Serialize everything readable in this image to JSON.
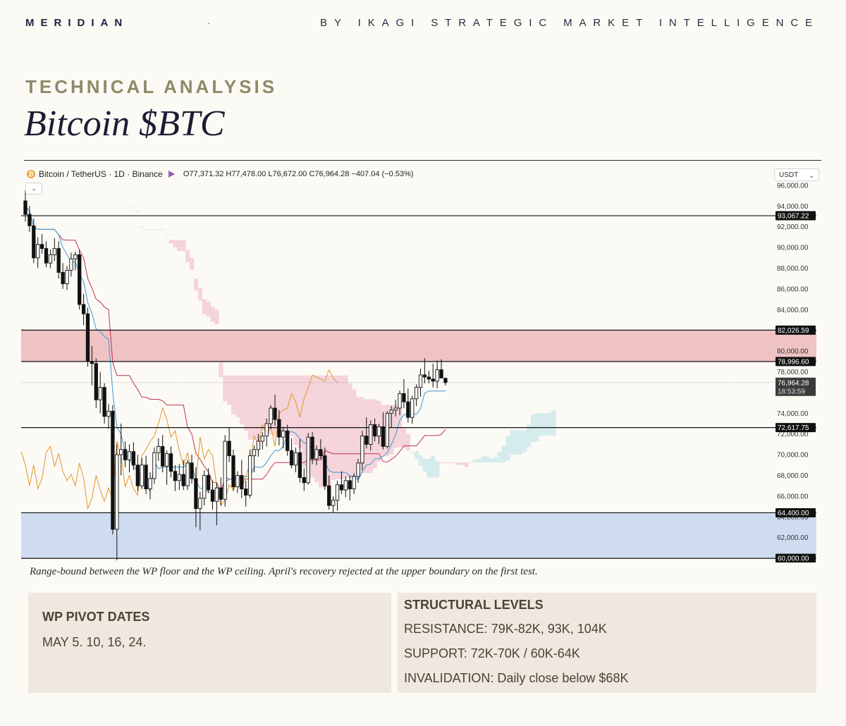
{
  "masthead": {
    "brand": "MERIDIAN",
    "separator": "·",
    "tagline": "BY IKAGI STRATEGIC MARKET INTELLIGENCE"
  },
  "header": {
    "kicker": "TECHNICAL ANALYSIS",
    "title": "Bitcoin $BTC"
  },
  "chart_header": {
    "coin_glyph": "₿",
    "symbol": "Bitcoin / TetherUS · 1D · Binance",
    "ohlc": "O77,371.32 H77,478.00 L76,672.00 C76,964.28 −407.04 (−0.53%)",
    "currency": "USDT",
    "currency_chevron": "⌄",
    "collapse_glyph": "⌄"
  },
  "colors": {
    "resistance_zone": "#efc2c3",
    "support_zone": "#cfdcef",
    "cloud_bearish": "#f3ccd6",
    "cloud_bullish": "#cfe9ea",
    "candle_up": "#ffffff",
    "candle_down": "#111111",
    "tenkan": "#3a9ad6",
    "kijun": "#c0344f",
    "chikou": "#e2962d"
  },
  "chart_data": {
    "type": "candlestick",
    "y_axis": {
      "range": [
        59600,
        96200
      ],
      "ticks": [
        "96,000.00",
        "94,000.00",
        "92,000.00",
        "90,000.00",
        "88,000.00",
        "86,000.00",
        "84,000.00",
        "82,000.00",
        "80,000.00",
        "78,000.00",
        "74,000.00",
        "72,000.00",
        "70,000.00",
        "68,000.00",
        "66,000.00",
        "64,000.00",
        "62,000.00"
      ],
      "tick_values": [
        96000,
        94000,
        92000,
        90000,
        88000,
        86000,
        84000,
        82000,
        80000,
        78000,
        74000,
        72000,
        70000,
        68000,
        66000,
        64000,
        62000
      ]
    },
    "zones": [
      {
        "name": "resistance",
        "from": 78996.6,
        "to": 82026.59
      },
      {
        "name": "support",
        "from": 60000.0,
        "to": 64400.0
      }
    ],
    "horizontal_levels": [
      {
        "value": 93067.22,
        "label": "93,067.22"
      },
      {
        "value": 82026.59,
        "label": "82,026.59"
      },
      {
        "value": 78996.6,
        "label": "78,996.60"
      },
      {
        "value": 72617.75,
        "label": "72,617.75"
      },
      {
        "value": 64400.0,
        "label": "64,400.00"
      },
      {
        "value": 60000.0,
        "label": "60,000.00"
      }
    ],
    "last_price": {
      "value": 76964.28,
      "label": "76,964.28",
      "countdown": "18:53:59"
    },
    "candles": [
      [
        94500,
        95500,
        92500,
        93200
      ],
      [
        93200,
        94000,
        91500,
        92100
      ],
      [
        92100,
        92800,
        88500,
        89000
      ],
      [
        89000,
        91000,
        88000,
        90300
      ],
      [
        90300,
        91300,
        89400,
        89900
      ],
      [
        89900,
        90600,
        88100,
        88500
      ],
      [
        88500,
        89800,
        88000,
        89300
      ],
      [
        89300,
        90900,
        88700,
        89900
      ],
      [
        89900,
        90600,
        87000,
        87600
      ],
      [
        87600,
        88500,
        86000,
        86500
      ],
      [
        86500,
        88200,
        85900,
        87800
      ],
      [
        87800,
        89500,
        87200,
        88900
      ],
      [
        88900,
        89600,
        87800,
        89300
      ],
      [
        89300,
        89800,
        84000,
        84500
      ],
      [
        84500,
        85500,
        82500,
        83600
      ],
      [
        83600,
        84200,
        78500,
        79000
      ],
      [
        79000,
        80500,
        76700,
        78800
      ],
      [
        78800,
        79300,
        74500,
        75300
      ],
      [
        75300,
        78000,
        74000,
        76500
      ],
      [
        76500,
        76900,
        73000,
        73700
      ],
      [
        73700,
        74900,
        72500,
        74200
      ],
      [
        74200,
        74800,
        62300,
        62800
      ],
      [
        62800,
        71000,
        59800,
        70000
      ],
      [
        70000,
        73000,
        68000,
        70500
      ],
      [
        70500,
        71300,
        68800,
        69500
      ],
      [
        69500,
        71000,
        68300,
        70300
      ],
      [
        70300,
        71200,
        68500,
        69000
      ],
      [
        69000,
        70000,
        66500,
        67000
      ],
      [
        67000,
        69700,
        66700,
        69000
      ],
      [
        69000,
        69900,
        66200,
        66700
      ],
      [
        66700,
        68300,
        65700,
        67700
      ],
      [
        67700,
        70700,
        67200,
        70200
      ],
      [
        70200,
        71600,
        69400,
        70800
      ],
      [
        70800,
        71900,
        68300,
        68900
      ],
      [
        68900,
        70400,
        67100,
        70100
      ],
      [
        70100,
        70800,
        67800,
        68400
      ],
      [
        68400,
        69000,
        66500,
        67500
      ],
      [
        67500,
        69100,
        66600,
        68100
      ],
      [
        68100,
        69500,
        66600,
        67000
      ],
      [
        67000,
        69500,
        66600,
        69200
      ],
      [
        69200,
        70000,
        67200,
        67700
      ],
      [
        67700,
        68800,
        63000,
        64800
      ],
      [
        64800,
        66400,
        62700,
        65800
      ],
      [
        65800,
        68500,
        65100,
        68000
      ],
      [
        68000,
        68700,
        66300,
        66600
      ],
      [
        66600,
        67500,
        64700,
        65500
      ],
      [
        65500,
        67300,
        63200,
        66800
      ],
      [
        66800,
        67800,
        65100,
        65700
      ],
      [
        65700,
        71900,
        65000,
        71300
      ],
      [
        71300,
        72600,
        69300,
        69900
      ],
      [
        69900,
        70500,
        66500,
        66900
      ],
      [
        66900,
        68400,
        66300,
        68000
      ],
      [
        68000,
        69500,
        65800,
        66700
      ],
      [
        66700,
        67500,
        65000,
        66100
      ],
      [
        66100,
        70500,
        65800,
        69900
      ],
      [
        69900,
        70900,
        68300,
        70500
      ],
      [
        70500,
        72000,
        69800,
        71300
      ],
      [
        71300,
        72200,
        70500,
        71800
      ],
      [
        71800,
        73500,
        70800,
        73000
      ],
      [
        73000,
        74800,
        72500,
        74500
      ],
      [
        74500,
        75800,
        72800,
        73400
      ],
      [
        73400,
        74300,
        70900,
        71700
      ],
      [
        71700,
        72700,
        70600,
        72300
      ],
      [
        72300,
        72900,
        69900,
        70400
      ],
      [
        70400,
        71600,
        68700,
        69000
      ],
      [
        69000,
        70700,
        68300,
        70200
      ],
      [
        70200,
        71500,
        67300,
        67800
      ],
      [
        67800,
        68700,
        66500,
        67300
      ],
      [
        67300,
        72100,
        67100,
        71700
      ],
      [
        71700,
        72200,
        69100,
        69600
      ],
      [
        69600,
        70900,
        69000,
        70500
      ],
      [
        70500,
        71500,
        69600,
        69900
      ],
      [
        69900,
        70700,
        66600,
        67000
      ],
      [
        67000,
        68000,
        64700,
        65100
      ],
      [
        65100,
        66000,
        64400,
        65600
      ],
      [
        65600,
        67500,
        64600,
        67100
      ],
      [
        67100,
        68400,
        66200,
        66600
      ],
      [
        66600,
        67900,
        65900,
        67500
      ],
      [
        67500,
        68000,
        65600,
        66700
      ],
      [
        66700,
        68200,
        66200,
        67900
      ],
      [
        67900,
        69600,
        67300,
        69200
      ],
      [
        69200,
        72300,
        68500,
        71800
      ],
      [
        71800,
        73600,
        70600,
        71000
      ],
      [
        71000,
        73300,
        70400,
        72900
      ],
      [
        72900,
        73500,
        71300,
        71800
      ],
      [
        71800,
        73000,
        71000,
        72700
      ],
      [
        72700,
        74100,
        70500,
        70800
      ],
      [
        70800,
        74200,
        70600,
        74000
      ],
      [
        74000,
        74700,
        72600,
        74300
      ],
      [
        74300,
        75300,
        73700,
        74500
      ],
      [
        74500,
        76200,
        73800,
        75900
      ],
      [
        75900,
        77300,
        74500,
        75100
      ],
      [
        75100,
        76400,
        73100,
        73600
      ],
      [
        73600,
        75700,
        73000,
        75400
      ],
      [
        75400,
        76800,
        74700,
        76500
      ],
      [
        76500,
        78300,
        75600,
        77700
      ],
      [
        77700,
        79300,
        76900,
        77500
      ],
      [
        77500,
        78100,
        76900,
        77300
      ],
      [
        77300,
        78800,
        76500,
        77100
      ],
      [
        77100,
        79100,
        76400,
        78200
      ],
      [
        78200,
        79200,
        77400,
        77400
      ],
      [
        77371.32,
        77478,
        76672,
        76964.28
      ]
    ]
  },
  "caption": "Range-bound between the WP floor and the WP ceiling. April's recovery rejected at the upper boundary on the first test.",
  "pivot_box": {
    "heading": "WP PIVOT DATES",
    "text": "MAY 5. 10, 16, 24."
  },
  "levels_box": {
    "heading": "STRUCTURAL LEVELS",
    "resistance": "RESISTANCE: 79K-82K, 93K, 104K",
    "support": "SUPPORT: 72K-70K / 60K-64K",
    "invalidation": "INVALIDATION: Daily close below $68K"
  }
}
